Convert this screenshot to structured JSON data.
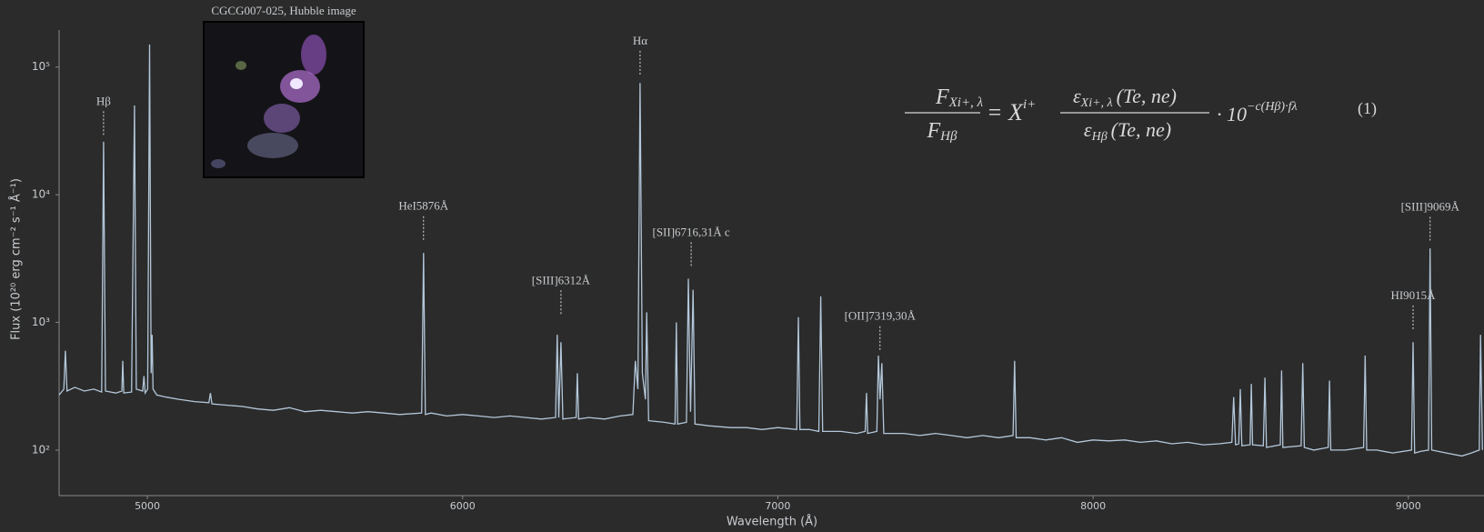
{
  "chart_data": {
    "type": "line",
    "xlabel": "Wavelength (Å)",
    "ylabel": "Flux (10²⁰ erg cm⁻² s⁻¹ Å⁻¹)",
    "ylog": true,
    "grid": false,
    "color": "#b3c7da",
    "xlim": [
      4720,
      9240
    ],
    "ylim": [
      44,
      195000
    ],
    "xticks": [
      5000,
      6000,
      7000,
      8000,
      9000
    ],
    "yticks": [
      {
        "value": 100,
        "label": "10²"
      },
      {
        "value": 1000,
        "label": "10³"
      },
      {
        "value": 10000,
        "label": "10⁴"
      },
      {
        "value": 100000,
        "label": "10⁵"
      }
    ],
    "x": [
      4720,
      4735,
      4740,
      4745,
      4770,
      4800,
      4830,
      4855,
      4861,
      4867,
      4900,
      4919,
      4922,
      4925,
      4950,
      4959,
      4965,
      4985,
      4989,
      4993,
      5001,
      5007,
      5012,
      5015,
      5018,
      5030,
      5060,
      5100,
      5150,
      5195,
      5200,
      5205,
      5250,
      5300,
      5350,
      5400,
      5450,
      5500,
      5550,
      5600,
      5650,
      5700,
      5750,
      5800,
      5870,
      5876,
      5882,
      5900,
      5950,
      6000,
      6050,
      6100,
      6150,
      6200,
      6250,
      6295,
      6300,
      6305,
      6312,
      6318,
      6360,
      6364,
      6368,
      6400,
      6450,
      6500,
      6540,
      6548,
      6556,
      6563,
      6570,
      6580,
      6584,
      6590,
      6640,
      6674,
      6678,
      6682,
      6710,
      6716,
      6723,
      6731,
      6737,
      6780,
      6850,
      6900,
      6950,
      7000,
      7060,
      7065,
      7070,
      7100,
      7130,
      7136,
      7142,
      7200,
      7250,
      7277,
      7281,
      7285,
      7314,
      7319,
      7324,
      7330,
      7336,
      7400,
      7450,
      7500,
      7550,
      7600,
      7650,
      7700,
      7746,
      7751,
      7756,
      7800,
      7850,
      7900,
      7950,
      8000,
      8050,
      8100,
      8150,
      8200,
      8250,
      8300,
      8350,
      8400,
      8440,
      8446,
      8452,
      8462,
      8467,
      8472,
      8498,
      8502,
      8506,
      8540,
      8545,
      8550,
      8594,
      8598,
      8602,
      8660,
      8665,
      8670,
      8700,
      8746,
      8750,
      8754,
      8800,
      8858,
      8863,
      8868,
      8900,
      8950,
      9010,
      9015,
      9020,
      9040,
      9064,
      9069,
      9074,
      9120,
      9170,
      9200,
      9225,
      9229,
      9235
    ],
    "values": [
      270,
      300,
      600,
      290,
      310,
      290,
      300,
      285,
      26000,
      290,
      280,
      290,
      500,
      280,
      285,
      50000,
      300,
      290,
      380,
      280,
      300,
      150000,
      400,
      800,
      300,
      270,
      260,
      250,
      240,
      235,
      280,
      230,
      225,
      220,
      210,
      205,
      215,
      200,
      205,
      200,
      195,
      200,
      195,
      190,
      195,
      3500,
      190,
      195,
      185,
      190,
      185,
      180,
      185,
      180,
      175,
      180,
      800,
      180,
      700,
      175,
      180,
      400,
      175,
      180,
      175,
      185,
      190,
      500,
      300,
      75000,
      400,
      250,
      1200,
      170,
      165,
      160,
      1000,
      160,
      165,
      2200,
      200,
      1800,
      160,
      155,
      150,
      150,
      145,
      150,
      145,
      1100,
      145,
      145,
      140,
      1600,
      140,
      140,
      135,
      140,
      280,
      135,
      140,
      550,
      250,
      480,
      135,
      135,
      130,
      135,
      130,
      125,
      130,
      125,
      130,
      500,
      125,
      125,
      120,
      125,
      115,
      120,
      118,
      120,
      115,
      118,
      112,
      115,
      110,
      112,
      115,
      260,
      110,
      112,
      300,
      108,
      110,
      330,
      110,
      108,
      370,
      105,
      110,
      420,
      105,
      108,
      480,
      105,
      100,
      105,
      350,
      100,
      100,
      105,
      550,
      100,
      100,
      95,
      100,
      700,
      95,
      98,
      100,
      3800,
      100,
      95,
      90,
      95,
      100,
      800,
      100
    ],
    "annotations": [
      {
        "text": "Hβ",
        "x": 4861,
        "y": 53000
      },
      {
        "text": "HeI5876Å",
        "x": 5876,
        "y": 8000
      },
      {
        "text": "[SIII]6312Å",
        "x": 6312,
        "y": 2100
      },
      {
        "text": "Hα",
        "x": 6563,
        "y": 158000
      },
      {
        "text": "[SII]6716,31Å c",
        "x": 6725,
        "y": 5000
      },
      {
        "text": "[OII]7319,30Å",
        "x": 7324,
        "y": 1100
      },
      {
        "text": "HI9015Å",
        "x": 9015,
        "y": 1600
      },
      {
        "text": "[SIII]9069Å",
        "x": 9069,
        "y": 7900
      }
    ],
    "inset_caption": "CGCG007-025, Hubble image",
    "equation": {
      "lhs_num": "F",
      "lhs_num_sub": "Xi+, λ",
      "lhs_den": "F",
      "lhs_den_sub": "Hβ",
      "rhs_prefix": "= X",
      "rhs_prefix_sup": "i+",
      "rhs_num": "ε",
      "rhs_num_sub": "Xi+, λ",
      "rhs_num_args": "(Te, ne)",
      "rhs_den": "ε",
      "rhs_den_sub": "Hβ",
      "rhs_den_args": "(Te, ne)",
      "rhs_suffix": "· 10",
      "rhs_suffix_sup": "−c(Hβ)·fλ",
      "number": "(1)"
    }
  }
}
